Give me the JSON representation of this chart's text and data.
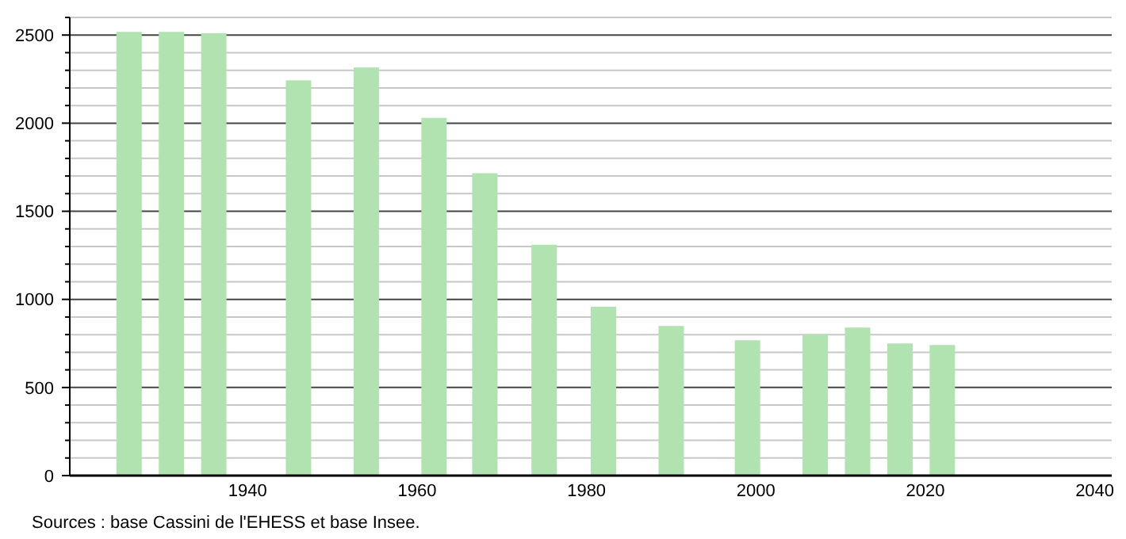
{
  "chart_data": {
    "type": "bar",
    "x": [
      1926,
      1931,
      1936,
      1946,
      1954,
      1962,
      1968,
      1975,
      1982,
      1990,
      1999,
      2007,
      2012,
      2017,
      2022
    ],
    "values": [
      2518,
      2518,
      2510,
      2243,
      2316,
      2030,
      1716,
      1310,
      958,
      849,
      768,
      801,
      840,
      750,
      741
    ],
    "color": "#b0e3b0",
    "xlim": [
      1919,
      2042
    ],
    "xticks": [
      1940,
      1960,
      1980,
      2000,
      2020,
      2040
    ],
    "ylim": [
      0,
      2600
    ],
    "yticks": [
      0,
      {
        "value": 100,
        "label": null
      },
      {
        "value": 200,
        "label": null
      },
      {
        "value": 300,
        "label": null
      },
      {
        "value": 400,
        "label": null
      },
      500,
      {
        "value": 600,
        "label": null
      },
      {
        "value": 700,
        "label": null
      },
      {
        "value": 800,
        "label": null
      },
      {
        "value": 900,
        "label": null
      },
      1000,
      {
        "value": 1100,
        "label": null
      },
      {
        "value": 1200,
        "label": null
      },
      {
        "value": 1300,
        "label": null
      },
      {
        "value": 1400,
        "label": null
      },
      1500,
      {
        "value": 1600,
        "label": null
      },
      {
        "value": 1700,
        "label": null
      },
      {
        "value": 1800,
        "label": null
      },
      {
        "value": 1900,
        "label": null
      },
      2000,
      {
        "value": 2100,
        "label": null
      },
      {
        "value": 2200,
        "label": null
      },
      {
        "value": 2300,
        "label": null
      },
      {
        "value": 2400,
        "label": null
      },
      2500,
      {
        "value": 2600,
        "label": null
      }
    ],
    "grid": "y",
    "annotations": [
      "Sources : base Cassini de l'EHESS et base Insee."
    ]
  }
}
